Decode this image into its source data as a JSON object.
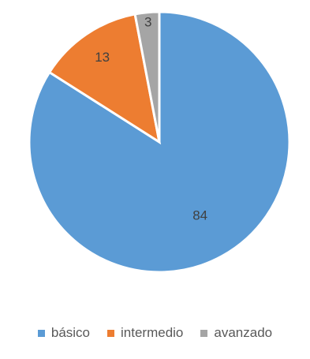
{
  "chart_data": {
    "type": "pie",
    "categories": [
      "básico",
      "intermedio",
      "avanzado"
    ],
    "values": [
      84,
      13,
      3
    ],
    "data_labels": [
      "84",
      "13",
      "3"
    ],
    "colors": [
      "#5B9BD5",
      "#ED7D31",
      "#A5A5A5"
    ],
    "start_angle_deg": 0,
    "direction": "clockwise",
    "legend_position": "bottom",
    "title": ""
  },
  "legend": {
    "items": [
      {
        "label": "básico",
        "color": "#5B9BD5"
      },
      {
        "label": "intermedio",
        "color": "#ED7D31"
      },
      {
        "label": "avanzado",
        "color": "#A5A5A5"
      }
    ]
  }
}
